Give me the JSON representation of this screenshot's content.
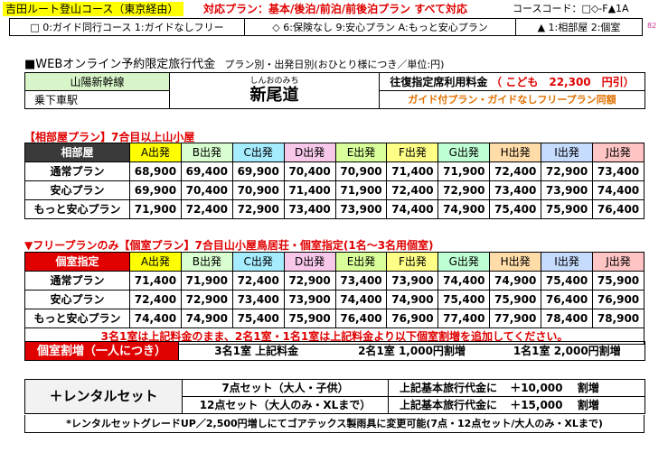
{
  "header": {
    "route": "吉田ルート登山コース（東京経由）",
    "plans": "対応プラン：基本/後泊/前泊/前後泊プラン すべて対応",
    "course_code": "コースコード：□◇-F▲1A",
    "legend_guide": "□ 0:ガイド同行コース 1:ガイドなしフリー",
    "legend_insurance": "◇ 6:保険なし 9:安心プラン A:もっと安心プラン",
    "legend_room": "▲ 1:相部屋 2:個室",
    "page_number": "82"
  },
  "fare_title": "■WEBオンライン予約限定旅行代金",
  "fare_subtitle": "プラン別・出発日別(おひとり様につき／単位:円)",
  "line_name": "山陽新幹線",
  "board_label": "乗下車駅",
  "station_ruby": "しんおのみち",
  "station_name": "新尾道",
  "reserved_fare_label": "往復指定席利用料金",
  "child_fare": "（ こども　22,300　円引）",
  "same_price_note": "ガイド付プラン・ガイドなしフリープラン同額",
  "shared": {
    "title": "【相部屋プラン】7合目以上山小屋",
    "header": "相部屋",
    "columns": [
      "A出発",
      "B出発",
      "C出発",
      "D出発",
      "E出発",
      "F出発",
      "G出発",
      "H出発",
      "I出発",
      "J出発"
    ],
    "column_colors": [
      "#ffff00",
      "#d9ffd0",
      "#a6ecff",
      "#f7c8ea",
      "#d8ff99",
      "#ffff88",
      "#bfffd4",
      "#ffdca8",
      "#c6dcff",
      "#ffc4c4"
    ],
    "rows": [
      {
        "plan": "通常プラン",
        "values": [
          "68,900",
          "69,400",
          "69,900",
          "70,400",
          "70,900",
          "71,400",
          "71,900",
          "72,400",
          "72,900",
          "73,400"
        ]
      },
      {
        "plan": "安心プラン",
        "values": [
          "69,900",
          "70,400",
          "70,900",
          "71,400",
          "71,900",
          "72,400",
          "72,900",
          "73,400",
          "73,900",
          "74,400"
        ]
      },
      {
        "plan": "もっと安心プラン",
        "values": [
          "71,900",
          "72,400",
          "72,900",
          "73,400",
          "73,900",
          "74,400",
          "74,900",
          "75,400",
          "75,900",
          "76,400"
        ]
      }
    ]
  },
  "private": {
    "title": "▼フリープランのみ【個室プラン】7合目山小屋鳥居荘・個室指定(1名～3名用個室)",
    "header": "個室指定",
    "rows": [
      {
        "plan": "通常プラン",
        "values": [
          "71,400",
          "71,900",
          "72,400",
          "72,900",
          "73,400",
          "73,900",
          "74,400",
          "74,900",
          "75,400",
          "75,900"
        ]
      },
      {
        "plan": "安心プラン",
        "values": [
          "72,400",
          "72,900",
          "73,400",
          "73,900",
          "74,400",
          "74,900",
          "75,400",
          "75,900",
          "76,400",
          "76,900"
        ]
      },
      {
        "plan": "もっと安心プラン",
        "values": [
          "74,400",
          "74,900",
          "75,400",
          "75,900",
          "76,400",
          "76,900",
          "77,400",
          "77,900",
          "78,400",
          "78,900"
        ]
      }
    ],
    "note": "3名1室は上記料金のまま、2名1室・1名1室は上記料金より以下個室割増を追加してください。",
    "surcharge_label": "個室割増（一人につき）",
    "surcharge_3": "3名1室 上記料金",
    "surcharge_2": "2名1室 1,000円割増",
    "surcharge_1": "1名1室 2,000円割増"
  },
  "rental": {
    "label": "＋レンタルセット",
    "set7": "7点セット（大人・子供）",
    "set12": "12点セット（大人のみ・XLまで）",
    "price_prefix": "上記基本旅行代金に",
    "price7": "＋10,000",
    "price12": "＋15,000",
    "suffix": "割増",
    "footnote": "*レンタルセットグレードUP／2,500円増しにてゴアテックス製雨具に変更可能(7点・12点セット/大人のみ・XLまで)"
  }
}
